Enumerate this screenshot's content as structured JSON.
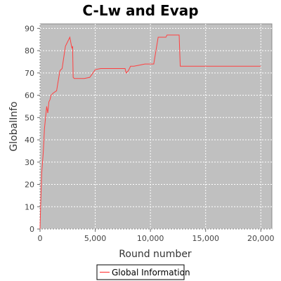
{
  "chart_data": {
    "type": "line",
    "title": "C-Lw and Evap",
    "xlabel": "Round number",
    "ylabel": "GlobalInfo",
    "xlim": [
      0,
      21000
    ],
    "ylim": [
      0,
      92
    ],
    "x_ticks": [
      0,
      5000,
      10000,
      15000,
      20000
    ],
    "x_tick_labels": [
      "0",
      "5,000",
      "10,000",
      "15,000",
      "20,000"
    ],
    "y_ticks": [
      0,
      10,
      20,
      30,
      40,
      50,
      60,
      70,
      80,
      90
    ],
    "y_tick_labels": [
      "0",
      "10",
      "20",
      "30",
      "40",
      "50",
      "60",
      "70",
      "80",
      "90"
    ],
    "grid": true,
    "legend_position": "bottom-center",
    "colors": {
      "plot_background": "#c0c0c0",
      "series": "#ff4040",
      "grid": "#ffffff"
    },
    "series": [
      {
        "name": "Global Information",
        "x": [
          0,
          50,
          150,
          300,
          400,
          500,
          600,
          700,
          800,
          900,
          1000,
          1200,
          1500,
          1800,
          2000,
          2300,
          2500,
          2700,
          2850,
          2900,
          2950,
          3000,
          3100,
          3500,
          4000,
          4500,
          4800,
          5000,
          5500,
          6000,
          7000,
          7700,
          7800,
          8000,
          8200,
          8500,
          9000,
          9500,
          10000,
          10300,
          10500,
          10700,
          11000,
          11400,
          11500,
          12000,
          12600,
          12700,
          13000,
          15000,
          18000,
          20000
        ],
        "y": [
          0,
          10,
          25,
          35,
          45,
          50,
          55,
          52,
          57,
          58,
          60,
          61,
          62,
          71,
          72,
          82,
          84,
          86,
          82,
          81,
          82,
          68,
          67.5,
          67.5,
          67.5,
          68,
          70,
          71.5,
          72,
          72,
          72,
          72,
          70,
          71,
          73,
          73,
          73.5,
          74,
          74,
          74,
          80,
          86,
          86,
          86,
          87,
          87,
          87,
          73,
          73,
          73,
          73,
          73
        ]
      }
    ]
  }
}
